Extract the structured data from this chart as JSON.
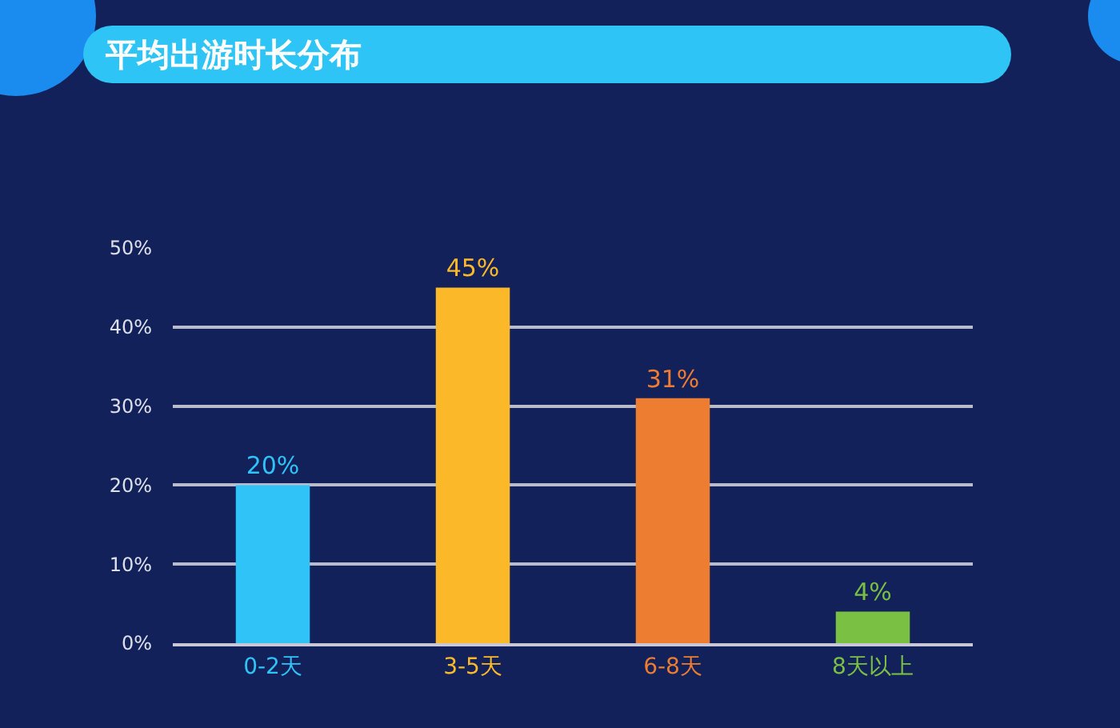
{
  "chart_data": {
    "type": "bar",
    "title": "平均出游时长分布",
    "categories": [
      "0-2天",
      "3-5天",
      "6-8天",
      "8天以上"
    ],
    "values": [
      20,
      45,
      31,
      4
    ],
    "colors": [
      "#2fc3f7",
      "#fbb829",
      "#ed7d31",
      "#7ac143"
    ],
    "value_labels": [
      "20%",
      "45%",
      "31%",
      "4%"
    ],
    "ylim": [
      0,
      50
    ],
    "yticks": [
      {
        "value": 0,
        "label": "0%"
      },
      {
        "value": 10,
        "label": "10%"
      },
      {
        "value": 20,
        "label": "20%"
      },
      {
        "value": 30,
        "label": "30%"
      },
      {
        "value": 40,
        "label": "40%"
      },
      {
        "value": 50,
        "label": "50%"
      }
    ],
    "grid": "y"
  }
}
